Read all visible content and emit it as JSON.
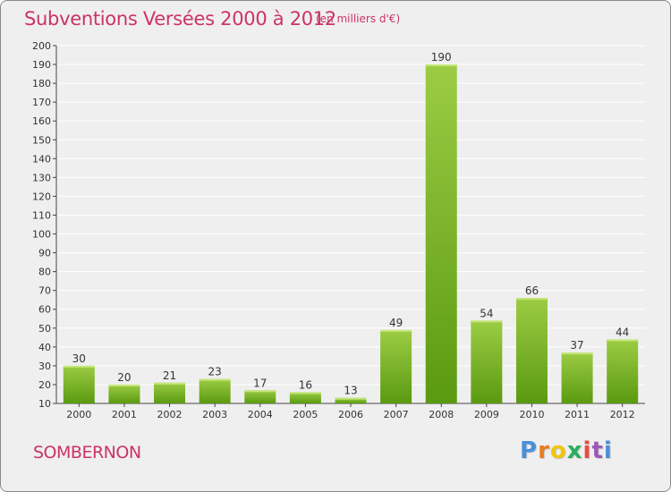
{
  "header": {
    "title": "Subventions Versées 2000 à 2012",
    "subtitle": "(en milliers d'€)"
  },
  "footer": {
    "location": "SOMBERNON",
    "logo_text": "Proxiti",
    "logo_colors": [
      "#4a90d9",
      "#e67e22",
      "#f1c40f",
      "#27ae60",
      "#e74c3c",
      "#9b59b6",
      "#4a90d9"
    ]
  },
  "colors": {
    "bar_light": "#9ccc44",
    "bar_dark": "#5a9a10",
    "accent": "#cc3366",
    "grid": "#ffffff",
    "axis": "#444444"
  },
  "chart_data": {
    "type": "bar",
    "title": "Subventions Versées 2000 à 2012",
    "subtitle": "(en milliers d'€)",
    "xlabel": "",
    "ylabel": "",
    "categories": [
      "2000",
      "2001",
      "2002",
      "2003",
      "2004",
      "2005",
      "2006",
      "2007",
      "2008",
      "2009",
      "2010",
      "2011",
      "2012"
    ],
    "values": [
      30,
      20,
      21,
      23,
      17,
      16,
      13,
      49,
      190,
      54,
      66,
      37,
      44
    ],
    "ylim": [
      10,
      200
    ],
    "yticks": [
      10,
      20,
      30,
      40,
      50,
      60,
      70,
      80,
      90,
      100,
      110,
      120,
      130,
      140,
      150,
      160,
      170,
      180,
      190,
      200
    ],
    "grid": true,
    "legend": "none"
  }
}
